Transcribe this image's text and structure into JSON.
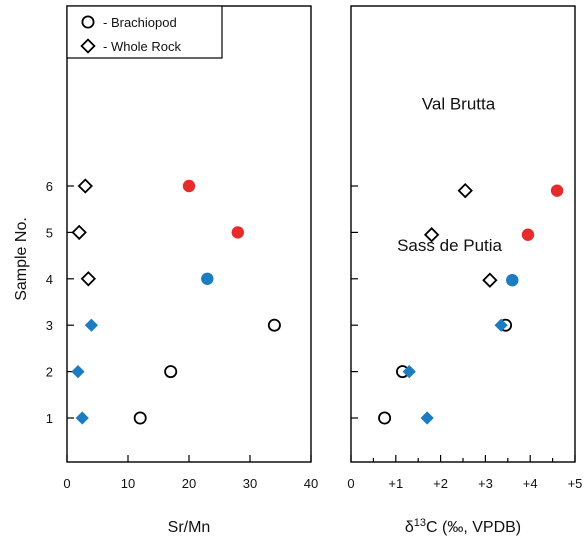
{
  "chart_data": [
    {
      "type": "scatter",
      "xlabel": "Sr/Mn",
      "ylabel": "Sample No.",
      "xlim": [
        0,
        40
      ],
      "ylim": [
        0,
        7.2
      ],
      "x_ticks": [
        "0",
        "10",
        "20",
        "30",
        "40"
      ],
      "y_ticks": [
        "1",
        "2",
        "3",
        "4",
        "5",
        "6"
      ],
      "legend": {
        "placement": "top-left",
        "entries": [
          {
            "marker": "circle-open",
            "label": "- Brachiopod"
          },
          {
            "marker": "diamond-open",
            "label": "- Whole Rock"
          }
        ]
      },
      "series": [
        {
          "marker": "circle",
          "color": "#e62b2b",
          "points": [
            [
              28,
              5
            ],
            [
              20,
              6
            ]
          ]
        },
        {
          "marker": "diamond-open",
          "color": "#000000",
          "points": [
            [
              2,
              5
            ],
            [
              3,
              6
            ]
          ]
        },
        {
          "marker": "circle",
          "color": "#1b7cc0",
          "points": [
            [
              23,
              4
            ]
          ]
        },
        {
          "marker": "diamond-open",
          "color": "#000000",
          "points": [
            [
              3.5,
              4
            ]
          ]
        },
        {
          "marker": "circle-open",
          "color": "#000000",
          "points": [
            [
              34,
              3
            ],
            [
              17,
              2
            ],
            [
              12,
              1
            ]
          ]
        },
        {
          "marker": "diamond",
          "color": "#1b7cc0",
          "points": [
            [
              4,
              3
            ],
            [
              1.8,
              2
            ],
            [
              2.5,
              1
            ]
          ]
        }
      ]
    },
    {
      "type": "scatter",
      "xlabel": "δ13C (‰, VPDB)",
      "ylim": [
        0,
        7.2
      ],
      "xlim": [
        0,
        5
      ],
      "x_ticks": [
        "0",
        "+1",
        "+2",
        "+3",
        "+4",
        "+5"
      ],
      "annotations": [
        {
          "text": "Val Brutta",
          "x": 2.4,
          "y": 7.65
        },
        {
          "text": "Sass de Putia",
          "x": 2.2,
          "y": 4.6
        }
      ],
      "series": [
        {
          "marker": "circle",
          "color": "#e62b2b",
          "points": [
            [
              4.6,
              5.9
            ],
            [
              3.95,
              4.95
            ]
          ]
        },
        {
          "marker": "diamond-open",
          "color": "#000000",
          "points": [
            [
              2.55,
              5.9
            ],
            [
              1.8,
              4.95
            ]
          ]
        },
        {
          "marker": "circle",
          "color": "#1b7cc0",
          "points": [
            [
              3.6,
              3.97
            ]
          ]
        },
        {
          "marker": "diamond-open",
          "color": "#000000",
          "points": [
            [
              3.1,
              3.97
            ]
          ]
        },
        {
          "marker": "circle-open",
          "color": "#000000",
          "points": [
            [
              3.45,
              3
            ],
            [
              1.15,
              2
            ],
            [
              0.75,
              1
            ]
          ]
        },
        {
          "marker": "diamond",
          "color": "#1b7cc0",
          "points": [
            [
              3.35,
              3
            ],
            [
              1.3,
              2
            ],
            [
              1.7,
              1
            ]
          ]
        }
      ]
    }
  ]
}
